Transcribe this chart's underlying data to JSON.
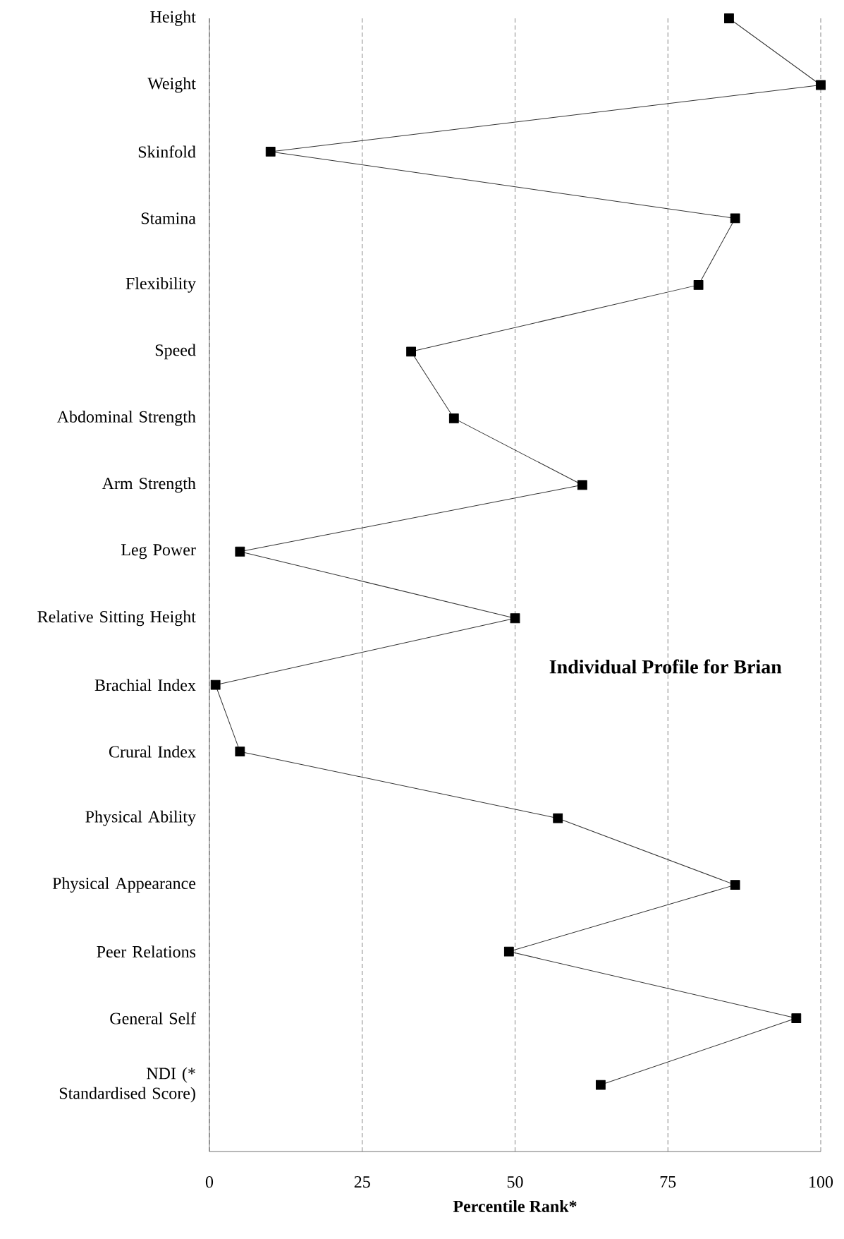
{
  "chart_data": {
    "type": "line",
    "orientation": "horizontal",
    "title": "Individual Profile for Brian",
    "xlabel": "Percentile Rank*",
    "categories": [
      "Height",
      "Weight",
      "Skinfold",
      "Stamina",
      "Flexibility",
      "Speed",
      "Abdominal Strength",
      "Arm Strength",
      "Leg Power",
      "Relative Sitting Height",
      "Brachial Index",
      "Crural Index",
      "Physical Ability",
      "Physical Appearance",
      "Peer Relations",
      "General Self",
      "NDI (* Standardised Score)"
    ],
    "values": [
      85,
      100,
      10,
      86,
      80,
      33,
      40,
      61,
      5,
      50,
      1,
      5,
      57,
      86,
      49,
      96,
      64
    ],
    "color": "#000000",
    "xlim": [
      0,
      100
    ],
    "xticks": [
      0,
      25,
      50,
      75,
      100
    ],
    "grid": "x",
    "marker": "square",
    "line_style": "solid"
  }
}
